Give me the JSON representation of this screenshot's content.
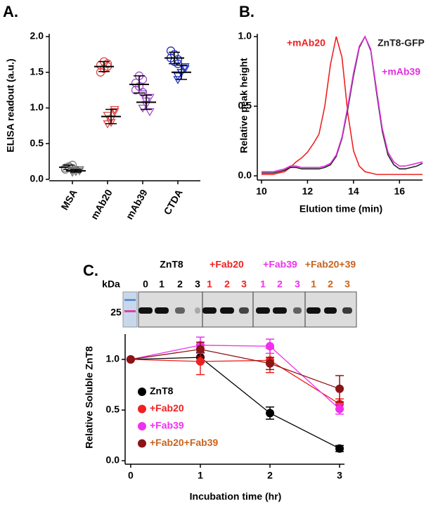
{
  "chart_data": [
    {
      "type": "dotplot",
      "panel": "A.",
      "ylabel": "ELISA readout (a.u.)",
      "categories": [
        "MSA",
        "mAb20",
        "mAb39",
        "CTDA"
      ],
      "colors": [
        "#808080",
        "#e04848",
        "#a050c8",
        "#1f2fc0"
      ],
      "ylim": [
        0,
        2
      ],
      "yticks": [
        {
          "value": 0,
          "label": "0.0"
        },
        0.5,
        {
          "value": 1,
          "label": "1.0"
        },
        1.5,
        {
          "value": 2,
          "label": "2.0"
        }
      ],
      "series": [
        {
          "marker": "circle",
          "values": [
            [
              0.16,
              0.18,
              0.2,
              0.14,
              0.17,
              0.15
            ],
            [
              1.6,
              1.55,
              1.62,
              1.5,
              1.65,
              1.58
            ],
            [
              1.35,
              1.3,
              1.4,
              1.25,
              1.45,
              1.22
            ],
            [
              1.7,
              1.75,
              1.62,
              1.8,
              1.65,
              1.68
            ]
          ],
          "means": [
            0.17,
            1.58,
            1.33,
            1.7
          ],
          "sds": [
            0.03,
            0.07,
            0.12,
            0.08
          ]
        },
        {
          "marker": "triangle",
          "values": [
            [
              0.1,
              0.12,
              0.14,
              0.13,
              0.11,
              0.12
            ],
            [
              0.78,
              0.85,
              0.95,
              0.9,
              0.8,
              0.98
            ],
            [
              1.0,
              1.1,
              0.95,
              1.2,
              1.05,
              1.15
            ],
            [
              1.45,
              1.5,
              1.55,
              1.4,
              1.5,
              1.58
            ]
          ],
          "means": [
            0.12,
            0.88,
            1.08,
            1.5
          ],
          "sds": [
            0.02,
            0.1,
            0.1,
            0.1
          ]
        }
      ]
    },
    {
      "type": "line",
      "panel": "B.",
      "xlabel": "Elution time (min)",
      "ylabel": "Relative peak height",
      "x": [
        10,
        10.25,
        10.5,
        10.75,
        11,
        11.25,
        11.5,
        11.75,
        12,
        12.25,
        12.5,
        12.75,
        13,
        13.25,
        13.5,
        13.75,
        14,
        14.25,
        14.5,
        14.75,
        15,
        15.25,
        15.5,
        15.75,
        16,
        16.25,
        16.5,
        16.75,
        17
      ],
      "xlim": [
        10,
        17
      ],
      "xticks": [
        10,
        12,
        14,
        16
      ],
      "ylim": [
        0,
        1
      ],
      "yticks": [
        {
          "value": 0,
          "label": "0.0"
        },
        0.5,
        {
          "value": 1,
          "label": "1.0"
        }
      ],
      "series": [
        {
          "name": "+mAb20",
          "color": "#f02020",
          "values": [
            0.01,
            0.01,
            0.01,
            0.02,
            0.03,
            0.06,
            0.1,
            0.13,
            0.17,
            0.23,
            0.3,
            0.5,
            0.8,
            1.0,
            0.85,
            0.45,
            0.18,
            0.07,
            0.03,
            0.02,
            0.01,
            0.01,
            0.01,
            0.01,
            0.01,
            0.01,
            0.01,
            0.01,
            0.01
          ]
        },
        {
          "name": "ZnT8-GFP",
          "color": "#222222",
          "values": [
            0.02,
            0.02,
            0.02,
            0.03,
            0.04,
            0.06,
            0.06,
            0.05,
            0.05,
            0.05,
            0.05,
            0.06,
            0.08,
            0.14,
            0.27,
            0.48,
            0.72,
            0.92,
            1.0,
            0.9,
            0.6,
            0.32,
            0.15,
            0.08,
            0.05,
            0.05,
            0.06,
            0.07,
            0.09
          ]
        },
        {
          "name": "+mAb39",
          "color": "#e030e0",
          "values": [
            0.03,
            0.03,
            0.03,
            0.04,
            0.05,
            0.07,
            0.07,
            0.06,
            0.06,
            0.06,
            0.06,
            0.07,
            0.09,
            0.15,
            0.28,
            0.5,
            0.74,
            0.93,
            1.0,
            0.91,
            0.62,
            0.34,
            0.17,
            0.1,
            0.07,
            0.07,
            0.08,
            0.09,
            0.1
          ]
        }
      ]
    },
    {
      "type": "errorline",
      "panel": "C.",
      "xlabel": "Incubation time (hr)",
      "ylabel": "Relative Soluble ZnT8",
      "x": [
        0,
        1,
        2,
        3
      ],
      "xlim": [
        -0.08,
        3.07
      ],
      "xticks": [
        0,
        1,
        2,
        3
      ],
      "ylim": [
        0,
        1.25
      ],
      "yticks": [
        {
          "value": 0,
          "label": "0.0"
        },
        0.5,
        {
          "value": 1,
          "label": "1.0"
        }
      ],
      "legend": "lower left",
      "series": [
        {
          "name": "ZnT8",
          "color": "#000000",
          "text_color": "#000000",
          "values": [
            1,
            1.02,
            0.47,
            0.12
          ],
          "errors": [
            0,
            0.05,
            0.06,
            0.03
          ]
        },
        {
          "name": "+Fab20",
          "color": "#f02020",
          "text_color": "#f02020",
          "values": [
            1,
            0.98,
            0.99,
            0.56
          ],
          "errors": [
            0,
            0.13,
            0.12,
            0.05
          ]
        },
        {
          "name": "+Fab39",
          "color": "#f030f0",
          "text_color": "#f030f0",
          "values": [
            1,
            1.14,
            1.13,
            0.51
          ],
          "errors": [
            0,
            0.08,
            0.07,
            0.05
          ]
        },
        {
          "name": "+Fab20+Fab39",
          "color": "#8b1414",
          "text_color": "#c8641e",
          "values": [
            1,
            1.1,
            0.96,
            0.71
          ],
          "errors": [
            0,
            0.07,
            0.06,
            0.13
          ]
        }
      ],
      "gel": {
        "unit_label": "kDa",
        "marker_label": "25",
        "groups": [
          {
            "label": "ZnT8",
            "color": "#000000",
            "lanes": [
              "0",
              "1",
              "2",
              "3"
            ]
          },
          {
            "label": "+Fab20",
            "color": "#f02020",
            "lanes": [
              "1",
              "2",
              "3"
            ]
          },
          {
            "label": "+Fab39",
            "color": "#f030f0",
            "lanes": [
              "1",
              "2",
              "3"
            ]
          },
          {
            "label": "+Fab20+39",
            "color": "#c8641e",
            "lanes": [
              "1",
              "2",
              "3"
            ]
          }
        ]
      }
    }
  ]
}
